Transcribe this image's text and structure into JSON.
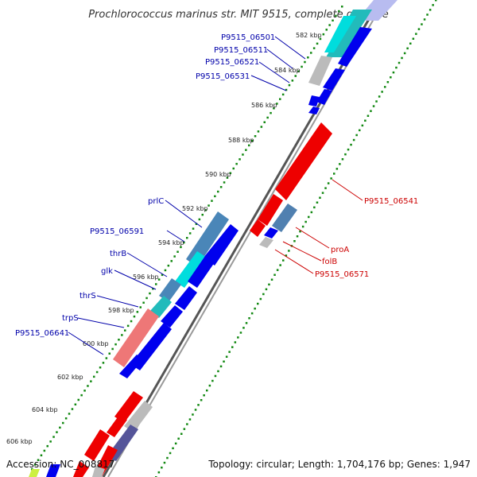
{
  "title": "Prochlorococcus marinus str. MIT 9515, complete genome",
  "footer": {
    "accession": "Accession: NC_008817",
    "summary": "Topology: circular; Length: 1,704,176 bp; Genes: 1,947"
  },
  "ticks": [
    "582 kbp",
    "584 kbp",
    "586 kbp",
    "588 kbp",
    "590 kbp",
    "592 kbp",
    "594 kbp",
    "596 kbp",
    "598 kbp",
    "600 kbp",
    "602 kbp",
    "604 kbp",
    "606 kbp"
  ],
  "colors": {
    "forward_cds": "#0000ee",
    "reverse_cds": "#ee0000",
    "forward_label": "#0000aa",
    "reverse_label": "#cc0000",
    "backbone": "#777777",
    "dots": "#118811"
  },
  "forward_labels": [
    "P9515_06501",
    "P9515_06511",
    "P9515_06521",
    "P9515_06531",
    "prlC",
    "P9515_06591",
    "thrB",
    "glk",
    "thrS",
    "trpS",
    "P9515_06641"
  ],
  "reverse_labels": [
    "P9515_06541",
    "proA",
    "folB",
    "P9515_06571"
  ]
}
